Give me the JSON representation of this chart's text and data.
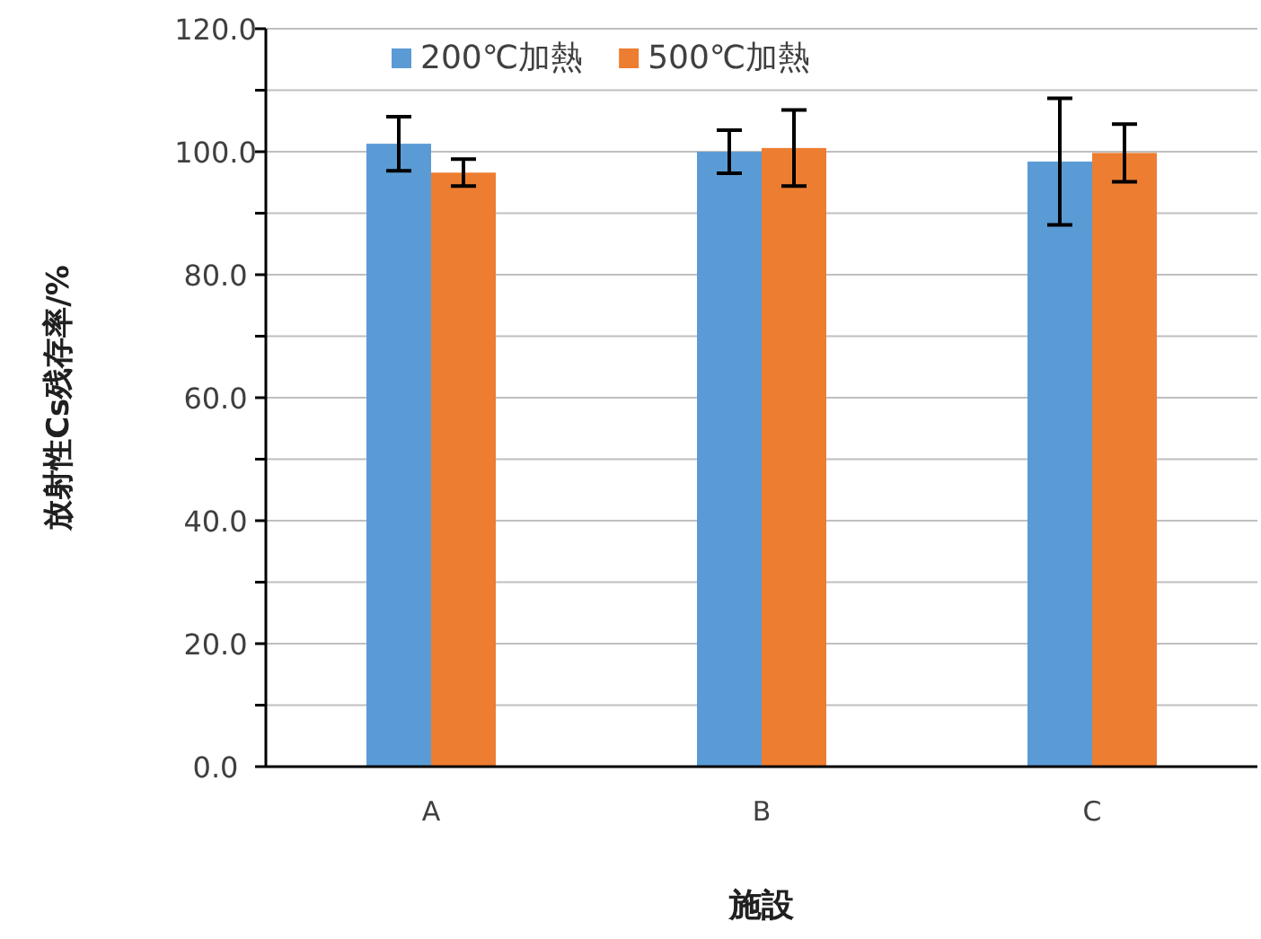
{
  "chart_data": {
    "type": "bar",
    "xlabel": "施設",
    "ylabel": "放射性Cs残存率/%",
    "categories": [
      "A",
      "B",
      "C"
    ],
    "series": [
      {
        "name": "200℃加熱",
        "color": "#5b9bd5",
        "values": [
          101.3,
          100.0,
          98.4
        ],
        "errors": [
          4.4,
          3.5,
          10.3
        ]
      },
      {
        "name": "500℃加熱",
        "color": "#ed7d31",
        "values": [
          96.6,
          100.6,
          99.8
        ],
        "errors": [
          2.2,
          6.2,
          4.7
        ]
      }
    ],
    "ylim": [
      0,
      120
    ],
    "yticks": [
      {
        "value": 0,
        "label": "0.0"
      },
      {
        "value": 10,
        "label": null
      },
      {
        "value": 20,
        "label": "20.0"
      },
      {
        "value": 30,
        "label": null
      },
      {
        "value": 40,
        "label": "40.0"
      },
      {
        "value": 50,
        "label": null
      },
      {
        "value": 60,
        "label": "60.0"
      },
      {
        "value": 70,
        "label": null
      },
      {
        "value": 80,
        "label": "80.0"
      },
      {
        "value": 90,
        "label": null
      },
      {
        "value": 100,
        "label": "100.0"
      },
      {
        "value": 110,
        "label": null
      },
      {
        "value": 120,
        "label": "120.0"
      }
    ],
    "grid": "y",
    "legend": "top left"
  }
}
